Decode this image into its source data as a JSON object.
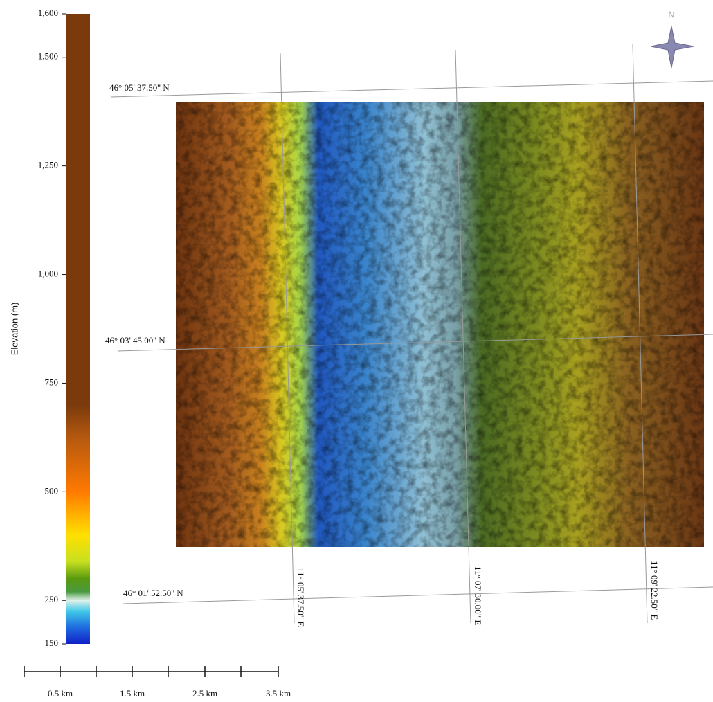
{
  "legend": {
    "title": "Elevation (m)",
    "range": [
      150,
      1600
    ],
    "ticks": [
      {
        "value": 1600,
        "label": "1,600"
      },
      {
        "value": 1500,
        "label": "1,500"
      },
      {
        "value": 1250,
        "label": "1,250"
      },
      {
        "value": 1000,
        "label": "1,000"
      },
      750,
      500,
      250,
      150
    ],
    "colorscale": [
      {
        "value": 150,
        "color": "#1020c8"
      },
      {
        "value": 190,
        "color": "#2070e0"
      },
      {
        "value": 225,
        "color": "#40c8e8"
      },
      {
        "value": 250,
        "color": "#e0f0e8"
      },
      {
        "value": 270,
        "color": "#4a9a40"
      },
      {
        "value": 300,
        "color": "#5a9a10"
      },
      {
        "value": 340,
        "color": "#c8e020"
      },
      {
        "value": 400,
        "color": "#ffe000"
      },
      {
        "value": 500,
        "color": "#ff7a00"
      },
      {
        "value": 620,
        "color": "#b85a10"
      },
      {
        "value": 700,
        "color": "#7a3a0c"
      },
      {
        "value": 1600,
        "color": "#7a3a0c"
      }
    ]
  },
  "map": {
    "latitude_labels": [
      "46° 05' 37.50'' N",
      "46° 03' 45.00'' N",
      "46° 01' 52.50'' N"
    ],
    "longitude_labels": [
      "11° 05' 37.50\" E",
      "11° 07' 30.00\" E",
      "11° 09' 22.50\" E"
    ]
  },
  "scale_bar": {
    "labels": [
      "0.5 km",
      "1.5 km",
      "2.5 km",
      "3.5 km"
    ]
  },
  "compass": "N"
}
